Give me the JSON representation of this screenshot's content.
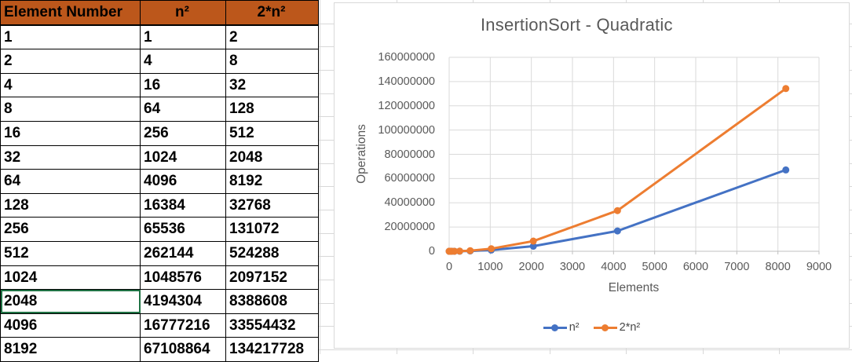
{
  "table": {
    "headers": [
      "Element Number",
      "n²",
      "2*n²"
    ],
    "rows": [
      [
        "1",
        "1",
        "2"
      ],
      [
        "2",
        "4",
        "8"
      ],
      [
        "4",
        "16",
        "32"
      ],
      [
        "8",
        "64",
        "128"
      ],
      [
        "16",
        "256",
        "512"
      ],
      [
        "32",
        "1024",
        "2048"
      ],
      [
        "64",
        "4096",
        "8192"
      ],
      [
        "128",
        "16384",
        "32768"
      ],
      [
        "256",
        "65536",
        "131072"
      ],
      [
        "512",
        "262144",
        "524288"
      ],
      [
        "1024",
        "1048576",
        "2097152"
      ],
      [
        "2048",
        "4194304",
        "8388608"
      ],
      [
        "4096",
        "16777216",
        "33554432"
      ],
      [
        "8192",
        "67108864",
        "134217728"
      ]
    ],
    "selected_row_index": 11,
    "header_bg": "#bc571b"
  },
  "chart_data": {
    "type": "line",
    "title": "InsertionSort - Quadratic",
    "xlabel": "Elements",
    "ylabel": "Operations",
    "xlim": [
      0,
      9000
    ],
    "ylim": [
      0,
      160000000
    ],
    "x_ticks": [
      0,
      1000,
      2000,
      3000,
      4000,
      5000,
      6000,
      7000,
      8000,
      9000
    ],
    "y_ticks": [
      0,
      20000000,
      40000000,
      60000000,
      80000000,
      100000000,
      120000000,
      140000000,
      160000000
    ],
    "grid": true,
    "legend_position": "bottom",
    "x": [
      1,
      2,
      4,
      8,
      16,
      32,
      64,
      128,
      256,
      512,
      1024,
      2048,
      4096,
      8192
    ],
    "series": [
      {
        "name": "n²",
        "color": "#4472C4",
        "values": [
          1,
          4,
          16,
          64,
          256,
          1024,
          4096,
          16384,
          65536,
          262144,
          1048576,
          4194304,
          16777216,
          67108864
        ]
      },
      {
        "name": "2*n²",
        "color": "#ED7D31",
        "values": [
          2,
          8,
          32,
          128,
          512,
          2048,
          8192,
          32768,
          131072,
          524288,
          2097152,
          8388608,
          33554432,
          134217728
        ]
      }
    ],
    "colors": {
      "axis_text": "#595959",
      "gridline": "#dadada",
      "axis_line": "#c0c0c0"
    }
  }
}
